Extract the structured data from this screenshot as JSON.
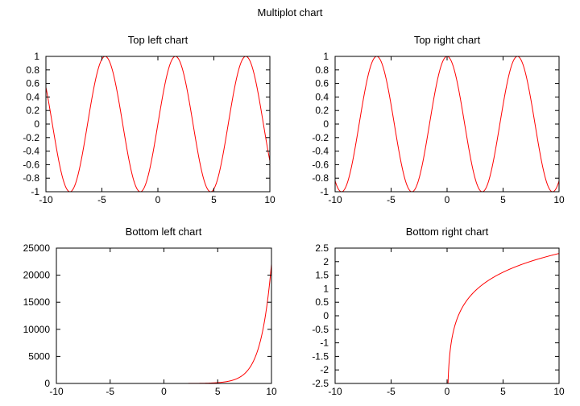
{
  "page_title": "Multiplot chart",
  "colors": {
    "line": "#ff0000",
    "axis": "#000000",
    "background": "#ffffff"
  },
  "chart_data": [
    {
      "id": "top-left",
      "type": "line",
      "title": "Top left chart",
      "function": "sin(x)",
      "xlim": [
        -10,
        10
      ],
      "ylim": [
        -1,
        1
      ],
      "x_ticks": [
        -10,
        -5,
        0,
        5,
        10
      ],
      "x_tick_labels": [
        "-10",
        "-5",
        "0",
        "5",
        "10"
      ],
      "y_ticks": [
        -1,
        -0.8,
        -0.6,
        -0.4,
        -0.2,
        0,
        0.2,
        0.4,
        0.6,
        0.8,
        1
      ],
      "y_tick_labels": [
        "-1",
        "-0.8",
        "-0.6",
        "-0.4",
        "-0.2",
        "0",
        "0.2",
        "0.4",
        "0.6",
        "0.8",
        "1"
      ],
      "series": [
        {
          "values": "sin(x) for x in [-10, 10]"
        }
      ]
    },
    {
      "id": "top-right",
      "type": "line",
      "title": "Top right chart",
      "function": "cos(x)",
      "xlim": [
        -10,
        10
      ],
      "ylim": [
        -1,
        1
      ],
      "x_ticks": [
        -10,
        -5,
        0,
        5,
        10
      ],
      "x_tick_labels": [
        "-10",
        "-5",
        "0",
        "5",
        "10"
      ],
      "y_ticks": [
        -1,
        -0.8,
        -0.6,
        -0.4,
        -0.2,
        0,
        0.2,
        0.4,
        0.6,
        0.8,
        1
      ],
      "y_tick_labels": [
        "-1",
        "-0.8",
        "-0.6",
        "-0.4",
        "-0.2",
        "0",
        "0.2",
        "0.4",
        "0.6",
        "0.8",
        "1"
      ],
      "series": [
        {
          "values": "cos(x) for x in [-10, 10]"
        }
      ]
    },
    {
      "id": "bottom-left",
      "type": "line",
      "title": "Bottom left chart",
      "function": "exp(x)",
      "xlim": [
        -10,
        10
      ],
      "ylim": [
        0,
        25000
      ],
      "x_ticks": [
        -10,
        -5,
        0,
        5,
        10
      ],
      "x_tick_labels": [
        "-10",
        "-5",
        "0",
        "5",
        "10"
      ],
      "y_ticks": [
        0,
        5000,
        10000,
        15000,
        20000,
        25000
      ],
      "y_tick_labels": [
        "0",
        "5000",
        "10000",
        "15000",
        "20000",
        "25000"
      ],
      "series": [
        {
          "values": "exp(x) for x in [-10, 10]"
        }
      ]
    },
    {
      "id": "bottom-right",
      "type": "line",
      "title": "Bottom right chart",
      "function": "log(x)",
      "xlim": [
        -10,
        10
      ],
      "ylim": [
        -2.5,
        2.5
      ],
      "x_ticks": [
        -10,
        -5,
        0,
        5,
        10
      ],
      "x_tick_labels": [
        "-10",
        "-5",
        "0",
        "5",
        "10"
      ],
      "y_ticks": [
        -2.5,
        -2,
        -1.5,
        -1,
        -0.5,
        0,
        0.5,
        1,
        1.5,
        2,
        2.5
      ],
      "y_tick_labels": [
        "-2.5",
        "-2",
        "-1.5",
        "-1",
        "-0.5",
        "0",
        "0.5",
        "1",
        "1.5",
        "2",
        "2.5"
      ],
      "series": [
        {
          "values": "log(x) for x in (0, 10]"
        }
      ]
    }
  ]
}
